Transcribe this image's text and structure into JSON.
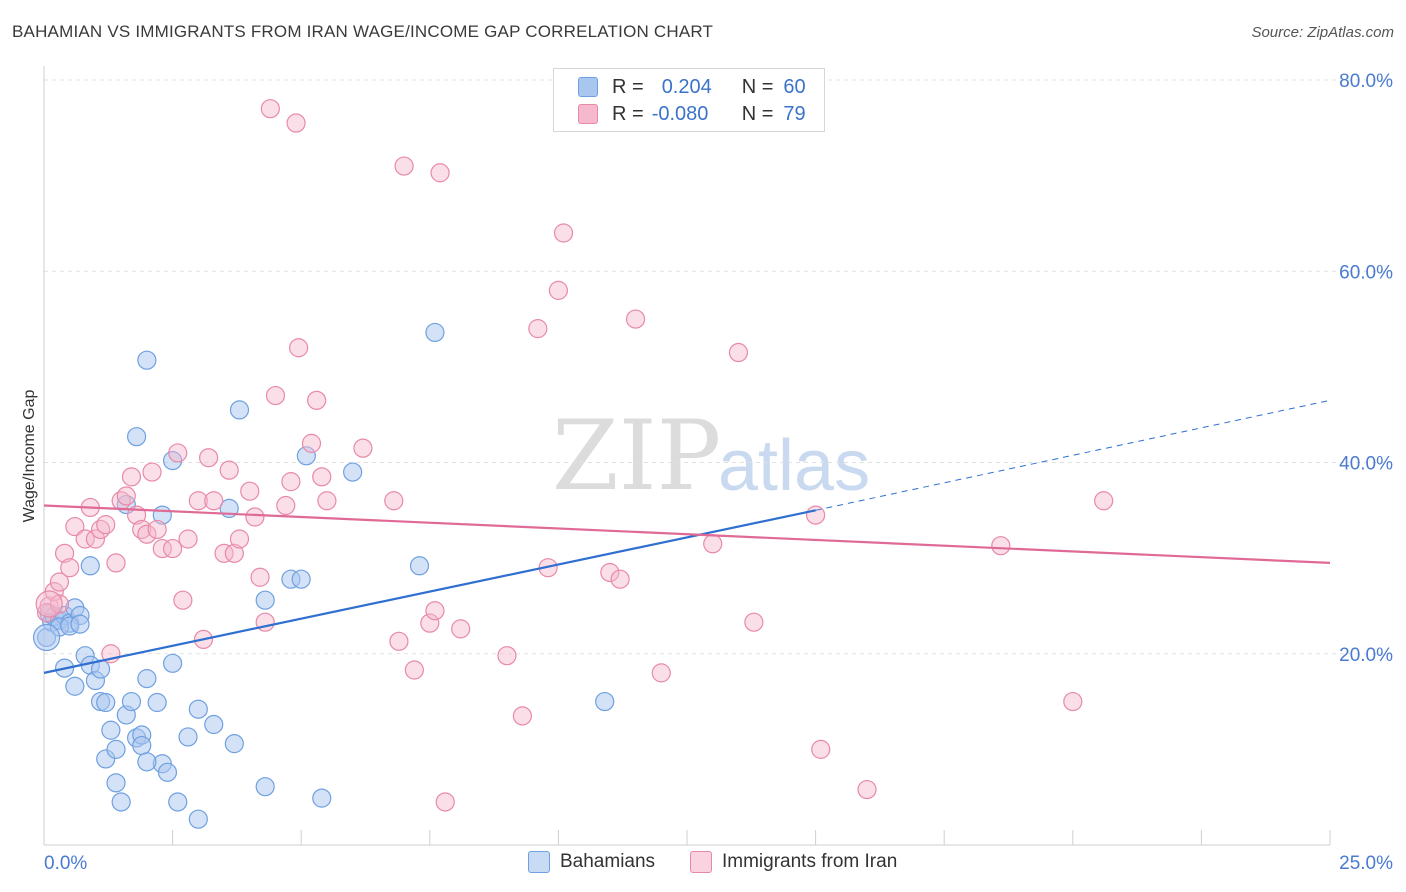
{
  "title": "BAHAMIAN VS IMMIGRANTS FROM IRAN WAGE/INCOME GAP CORRELATION CHART",
  "source": "Source: ZipAtlas.com",
  "watermark": {
    "zip": "ZIP",
    "atlas": "atlas"
  },
  "legend": {
    "rows": [
      {
        "r_label": "R =",
        "r_value": "0.204",
        "n_label": "N =",
        "n_value": "60",
        "color": "#a9c6ef"
      },
      {
        "r_label": "R =",
        "r_value": "-0.080",
        "n_label": "N =",
        "n_value": "79",
        "color": "#f5b8cc"
      }
    ]
  },
  "bottom_legend": [
    {
      "label": "Bahamians",
      "color": "#a9c6ef"
    },
    {
      "label": "Immigrants from Iran",
      "color": "#f5b8cc"
    }
  ],
  "chart_data": {
    "type": "scatter",
    "title": "BAHAMIAN VS IMMIGRANTS FROM IRAN WAGE/INCOME GAP CORRELATION CHART",
    "xlabel": "",
    "ylabel": "Wage/Income Gap",
    "xlim": [
      0,
      25
    ],
    "ylim": [
      0,
      80
    ],
    "x_tick_labels": [
      "0.0%",
      "25.0%"
    ],
    "y_ticks": [
      20,
      40,
      60,
      80
    ],
    "y_tick_labels": [
      "20.0%",
      "40.0%",
      "60.0%",
      "80.0%"
    ],
    "grid": true,
    "legend_placement": "top-center",
    "series": [
      {
        "name": "Bahamians",
        "color": "#6fa0e0",
        "fill": "#a9c6ef",
        "points": [
          [
            0.05,
            21.7
          ],
          [
            0.1,
            24.2
          ],
          [
            0.15,
            23.3
          ],
          [
            0.2,
            23.9
          ],
          [
            0.3,
            23.5
          ],
          [
            0.4,
            24.0
          ],
          [
            0.5,
            23.2
          ],
          [
            0.6,
            24.8
          ],
          [
            0.7,
            24.0
          ],
          [
            0.8,
            19.8
          ],
          [
            0.9,
            18.8
          ],
          [
            1.0,
            17.2
          ],
          [
            1.1,
            15.0
          ],
          [
            1.3,
            12.0
          ],
          [
            1.2,
            9.0
          ],
          [
            1.4,
            10.0
          ],
          [
            1.5,
            4.5
          ],
          [
            1.6,
            13.6
          ],
          [
            1.7,
            15.0
          ],
          [
            1.8,
            11.2
          ],
          [
            1.9,
            11.5
          ],
          [
            2.0,
            17.4
          ],
          [
            2.2,
            14.9
          ],
          [
            2.3,
            8.5
          ],
          [
            2.4,
            7.6
          ],
          [
            2.5,
            19.0
          ],
          [
            2.6,
            4.5
          ],
          [
            2.8,
            11.3
          ],
          [
            3.0,
            14.2
          ],
          [
            3.3,
            12.6
          ],
          [
            3.7,
            10.6
          ],
          [
            4.3,
            6.1
          ],
          [
            5.4,
            4.9
          ],
          [
            0.9,
            29.2
          ],
          [
            1.6,
            35.6
          ],
          [
            1.8,
            42.7
          ],
          [
            2.0,
            50.7
          ],
          [
            2.3,
            34.5
          ],
          [
            2.5,
            40.2
          ],
          [
            3.6,
            35.2
          ],
          [
            3.8,
            45.5
          ],
          [
            4.3,
            25.6
          ],
          [
            4.8,
            27.8
          ],
          [
            5.0,
            27.8
          ],
          [
            5.1,
            40.7
          ],
          [
            6.0,
            39.0
          ],
          [
            7.3,
            29.2
          ],
          [
            7.6,
            53.6
          ],
          [
            10.9,
            15.0
          ],
          [
            3.0,
            2.7
          ],
          [
            1.4,
            6.5
          ],
          [
            1.9,
            10.4
          ],
          [
            0.6,
            16.6
          ],
          [
            1.2,
            14.9
          ],
          [
            0.3,
            22.8
          ],
          [
            0.5,
            22.9
          ],
          [
            0.7,
            23.1
          ],
          [
            0.4,
            18.5
          ],
          [
            1.1,
            18.4
          ],
          [
            2.0,
            8.7
          ]
        ]
      },
      {
        "name": "Immigrants from Iran",
        "color": "#e889a8",
        "fill": "#f5b8cc",
        "points": [
          [
            0.1,
            25.0
          ],
          [
            0.2,
            26.5
          ],
          [
            0.3,
            27.5
          ],
          [
            0.4,
            30.5
          ],
          [
            0.5,
            29.0
          ],
          [
            0.6,
            33.3
          ],
          [
            0.8,
            32.0
          ],
          [
            0.9,
            35.3
          ],
          [
            1.0,
            32.0
          ],
          [
            1.1,
            33.0
          ],
          [
            1.2,
            33.5
          ],
          [
            1.3,
            20.0
          ],
          [
            1.4,
            29.5
          ],
          [
            1.5,
            36.0
          ],
          [
            1.6,
            36.5
          ],
          [
            1.7,
            38.5
          ],
          [
            1.8,
            34.5
          ],
          [
            1.9,
            33.0
          ],
          [
            2.0,
            32.5
          ],
          [
            2.1,
            39.0
          ],
          [
            2.2,
            33.0
          ],
          [
            2.3,
            31.0
          ],
          [
            2.5,
            31.0
          ],
          [
            2.6,
            41.0
          ],
          [
            2.7,
            25.6
          ],
          [
            2.8,
            32.0
          ],
          [
            3.0,
            36.0
          ],
          [
            3.1,
            21.5
          ],
          [
            3.2,
            40.5
          ],
          [
            3.3,
            36.0
          ],
          [
            3.5,
            30.5
          ],
          [
            3.6,
            39.2
          ],
          [
            3.7,
            30.5
          ],
          [
            3.8,
            32.0
          ],
          [
            4.0,
            37.0
          ],
          [
            4.1,
            34.3
          ],
          [
            4.2,
            28.0
          ],
          [
            4.3,
            23.3
          ],
          [
            4.4,
            77.0
          ],
          [
            4.5,
            47.0
          ],
          [
            4.7,
            35.5
          ],
          [
            4.8,
            38.0
          ],
          [
            4.9,
            75.5
          ],
          [
            4.95,
            52.0
          ],
          [
            5.2,
            42.0
          ],
          [
            5.3,
            46.5
          ],
          [
            5.4,
            38.5
          ],
          [
            5.5,
            36.0
          ],
          [
            6.2,
            41.5
          ],
          [
            6.8,
            36.0
          ],
          [
            6.9,
            21.3
          ],
          [
            7.0,
            71.0
          ],
          [
            7.2,
            18.3
          ],
          [
            7.5,
            23.2
          ],
          [
            7.6,
            24.5
          ],
          [
            7.7,
            70.3
          ],
          [
            7.8,
            4.5
          ],
          [
            8.1,
            22.6
          ],
          [
            9.0,
            19.8
          ],
          [
            9.3,
            13.5
          ],
          [
            9.6,
            54.0
          ],
          [
            9.8,
            29.0
          ],
          [
            10.0,
            58.0
          ],
          [
            10.1,
            64.0
          ],
          [
            11.0,
            28.5
          ],
          [
            11.2,
            27.8
          ],
          [
            11.5,
            55.0
          ],
          [
            12.0,
            18.0
          ],
          [
            13.0,
            31.5
          ],
          [
            13.5,
            51.5
          ],
          [
            13.8,
            23.3
          ],
          [
            15.0,
            34.5
          ],
          [
            15.1,
            10.0
          ],
          [
            16.0,
            5.8
          ],
          [
            18.6,
            31.3
          ],
          [
            20.0,
            15.0
          ],
          [
            20.6,
            36.0
          ],
          [
            0.05,
            24.3
          ],
          [
            0.3,
            25.2
          ]
        ]
      }
    ],
    "trend_lines": [
      {
        "series": "Bahamians",
        "x": [
          0,
          15.0
        ],
        "y": [
          18.0,
          35.0
        ],
        "dashed_extension": {
          "x": [
            15.0,
            25.0
          ],
          "y": [
            35.0,
            46.5
          ]
        }
      },
      {
        "series": "Immigrants from Iran",
        "x": [
          0,
          25.0
        ],
        "y": [
          35.5,
          29.5
        ]
      }
    ]
  }
}
